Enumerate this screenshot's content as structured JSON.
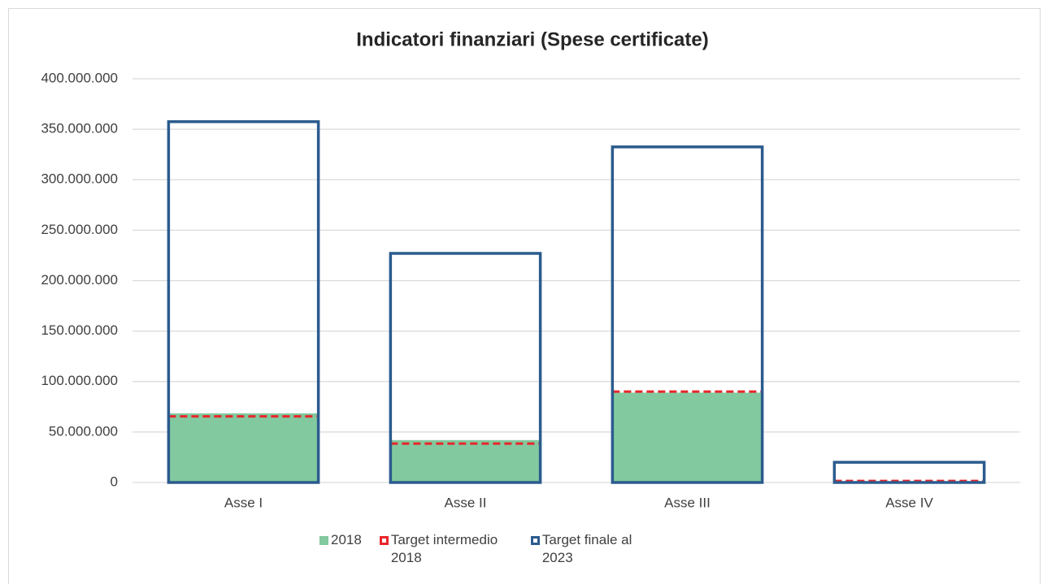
{
  "chart_data": {
    "type": "bar",
    "title": "Indicatori finanziari (Spese certificate)",
    "categories": [
      "Asse I",
      "Asse II",
      "Asse III",
      "Asse IV"
    ],
    "series": [
      {
        "name": "2018",
        "color": "#82c99f",
        "values": [
          68500000,
          42000000,
          89000000,
          500000
        ]
      },
      {
        "name": "Target intermedio 2018",
        "color": "#e8262b",
        "values": [
          65500000,
          38500000,
          90000000,
          1500000
        ]
      },
      {
        "name": "Target finale al 2023",
        "color": "#2b5b8e",
        "values": [
          357500000,
          227000000,
          332500000,
          20000000
        ]
      }
    ],
    "ylim": [
      0,
      400000000
    ],
    "yticks": [
      0,
      {
        "value": 50000000,
        "label": "50.000.000"
      },
      {
        "value": 100000000,
        "label": "100.000.000"
      },
      {
        "value": 150000000,
        "label": "150.000.000"
      },
      {
        "value": 200000000,
        "label": "200.000.000"
      },
      {
        "value": 250000000,
        "label": "250.000.000"
      },
      {
        "value": 300000000,
        "label": "300.000.000"
      },
      {
        "value": 350000000,
        "label": "350.000.000"
      },
      {
        "value": 400000000,
        "label": "400.000.000"
      }
    ],
    "grid": true
  }
}
